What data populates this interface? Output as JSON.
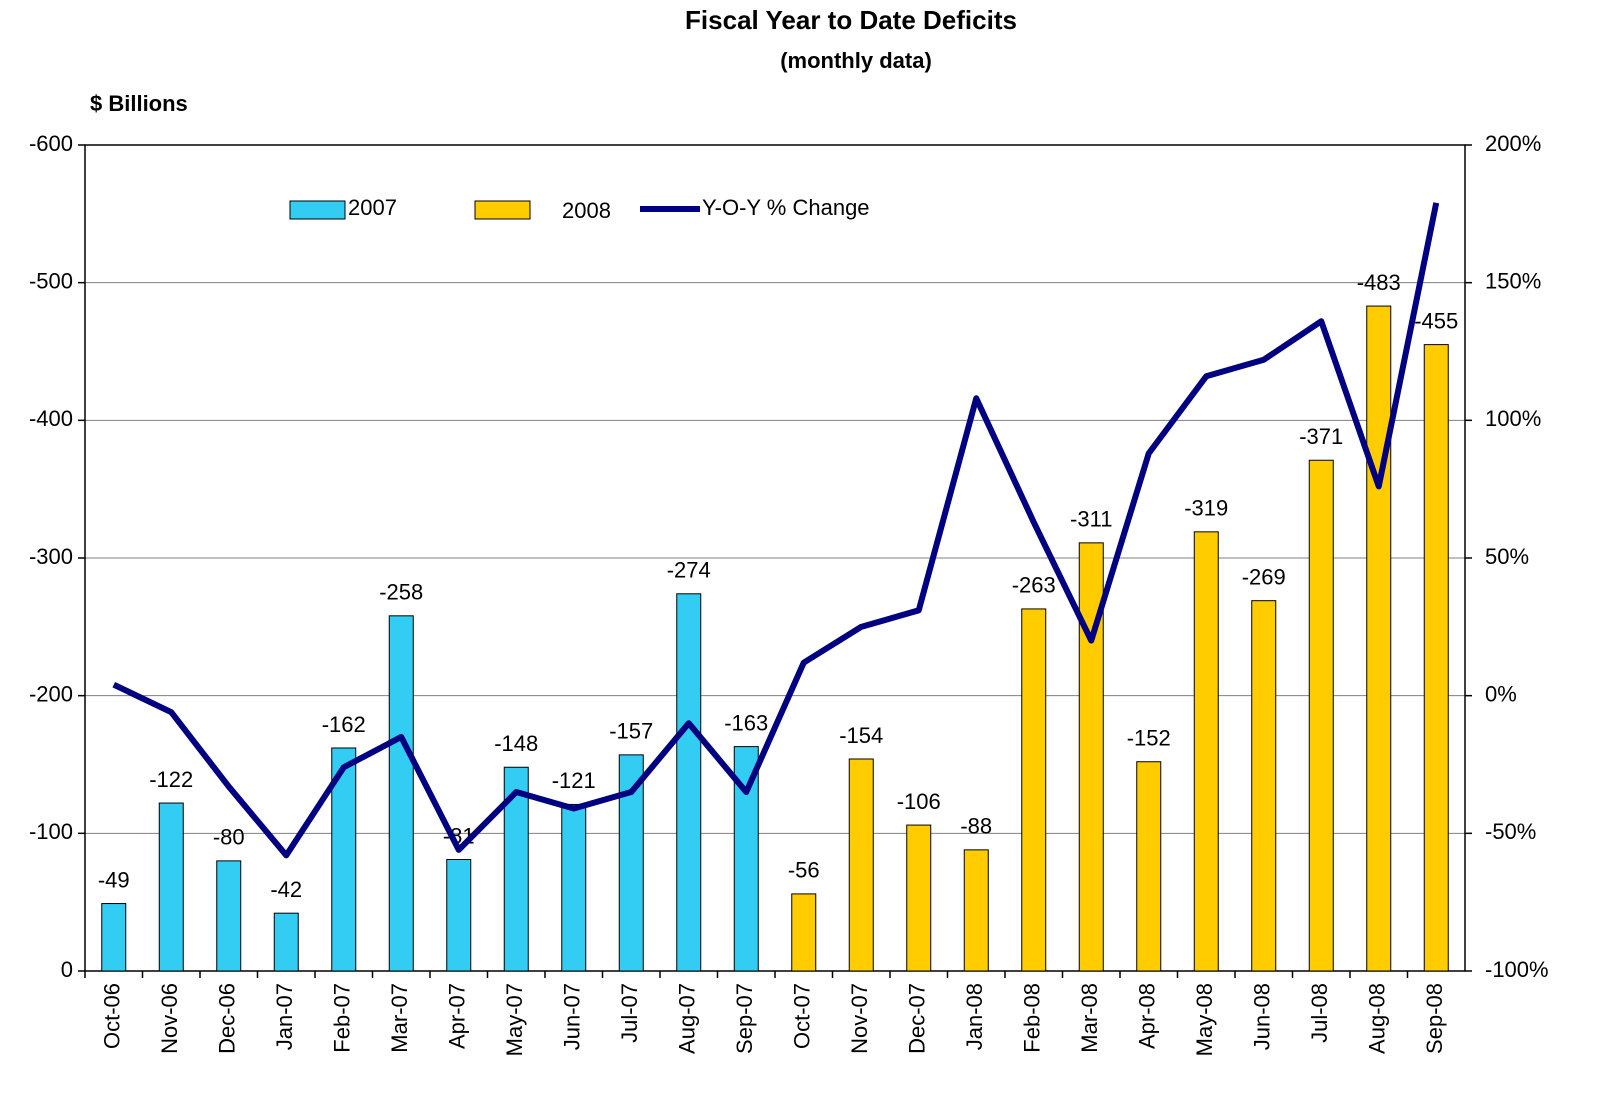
{
  "chart_data": {
    "type": "bar_line",
    "title": "Fiscal Year to Date Deficits",
    "subtitle": "(monthly data)",
    "y_label": "$ Billions",
    "categories": [
      "Oct-06",
      "Nov-06",
      "Dec-06",
      "Jan-07",
      "Feb-07",
      "Mar-07",
      "Apr-07",
      "May-07",
      "Jun-07",
      "Jul-07",
      "Aug-07",
      "Sep-07",
      "Oct-07",
      "Nov-07",
      "Dec-07",
      "Jan-08",
      "Feb-08",
      "Mar-08",
      "Apr-08",
      "May-08",
      "Jun-08",
      "Jul-08",
      "Aug-08",
      "Sep-08"
    ],
    "series": [
      {
        "name": "2007",
        "type": "bar",
        "color": "#33ccf2",
        "values": [
          -49,
          -122,
          -80,
          -42,
          -162,
          -258,
          -81,
          -148,
          -121,
          -157,
          -274,
          -163,
          null,
          null,
          null,
          null,
          null,
          null,
          null,
          null,
          null,
          null,
          null,
          null
        ]
      },
      {
        "name": "2008",
        "type": "bar",
        "color": "#ffcc00",
        "values": [
          null,
          null,
          null,
          null,
          null,
          null,
          null,
          null,
          null,
          null,
          null,
          null,
          -56,
          -154,
          -106,
          -88,
          -263,
          -311,
          -152,
          -319,
          -269,
          -371,
          -483,
          -455
        ]
      },
      {
        "name": "Y-O-Y % Change",
        "type": "line",
        "axis": "y2",
        "color": "#000080",
        "values": [
          4,
          -6,
          -33,
          -58,
          -26,
          -15,
          -56,
          -35,
          -41,
          -35,
          -10,
          -35,
          12,
          25,
          31,
          108,
          63,
          20,
          88,
          116,
          122,
          136,
          76,
          179
        ]
      }
    ],
    "ylim": [
      0,
      -600
    ],
    "yticks": [
      0,
      -100,
      -200,
      -300,
      -400,
      -500,
      -600
    ],
    "y2lim": [
      -100,
      200
    ],
    "y2ticks": [
      {
        "value": -100,
        "label": "-100%"
      },
      {
        "value": -50,
        "label": "-50%"
      },
      {
        "value": 0,
        "label": "0%"
      },
      {
        "value": 50,
        "label": "50%"
      },
      {
        "value": 100,
        "label": "100%"
      },
      {
        "value": 150,
        "label": "150%"
      },
      {
        "value": 200,
        "label": "200%"
      }
    ],
    "grid": true,
    "legend": "top"
  }
}
